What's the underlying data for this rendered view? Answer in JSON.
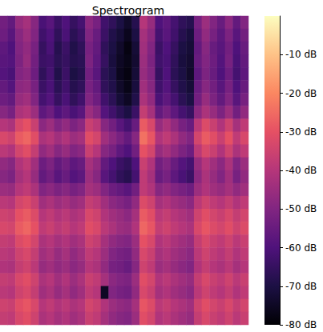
{
  "chart_data": {
    "type": "heatmap",
    "title": "Spectrogram",
    "tick_labels": false,
    "cells": [
      [
        -53,
        -56,
        -46,
        -43,
        -49,
        -61,
        -58,
        -64,
        -60,
        -65,
        -62,
        -48,
        -52,
        -63,
        -66,
        -70,
        -74,
        -68,
        -40,
        -46,
        -60,
        -57,
        -62,
        -66,
        -68,
        -52,
        -45,
        -50,
        -55,
        -48,
        -56,
        -50
      ],
      [
        -54,
        -58,
        -49,
        -45,
        -50,
        -63,
        -60,
        -66,
        -61,
        -67,
        -64,
        -50,
        -55,
        -64,
        -69,
        -72,
        -76,
        -70,
        -43,
        -48,
        -62,
        -58,
        -63,
        -68,
        -71,
        -54,
        -47,
        -52,
        -57,
        -51,
        -58,
        -53
      ],
      [
        -57,
        -60,
        -50,
        -47,
        -52,
        -65,
        -61,
        -68,
        -64,
        -69,
        -66,
        -52,
        -56,
        -66,
        -70,
        -74,
        -78,
        -72,
        -44,
        -50,
        -64,
        -60,
        -65,
        -70,
        -72,
        -56,
        -49,
        -55,
        -58,
        -53,
        -60,
        -55
      ],
      [
        -58,
        -59,
        -51,
        -46,
        -53,
        -64,
        -63,
        -67,
        -65,
        -68,
        -67,
        -51,
        -57,
        -65,
        -71,
        -75,
        -77,
        -73,
        -45,
        -51,
        -63,
        -61,
        -66,
        -71,
        -73,
        -55,
        -50,
        -54,
        -59,
        -52,
        -61,
        -56
      ],
      [
        -59,
        -61,
        -50,
        -48,
        -54,
        -66,
        -62,
        -69,
        -64,
        -70,
        -68,
        -53,
        -58,
        -67,
        -70,
        -76,
        -78,
        -72,
        -46,
        -50,
        -65,
        -60,
        -67,
        -70,
        -74,
        -57,
        -51,
        -55,
        -60,
        -54,
        -62,
        -57
      ],
      [
        -56,
        -59,
        -48,
        -47,
        -52,
        -64,
        -61,
        -67,
        -63,
        -68,
        -66,
        -52,
        -56,
        -66,
        -69,
        -74,
        -77,
        -71,
        -44,
        -49,
        -63,
        -59,
        -65,
        -69,
        -72,
        -55,
        -49,
        -53,
        -58,
        -52,
        -60,
        -55
      ],
      [
        -54,
        -56,
        -46,
        -44,
        -50,
        -62,
        -59,
        -65,
        -61,
        -66,
        -63,
        -50,
        -54,
        -63,
        -67,
        -72,
        -75,
        -69,
        -42,
        -47,
        -61,
        -57,
        -62,
        -67,
        -70,
        -53,
        -46,
        -51,
        -56,
        -50,
        -58,
        -52
      ],
      [
        -49,
        -52,
        -42,
        -40,
        -45,
        -57,
        -54,
        -60,
        -57,
        -61,
        -58,
        -45,
        -49,
        -59,
        -63,
        -67,
        -70,
        -64,
        -37,
        -43,
        -56,
        -52,
        -57,
        -62,
        -65,
        -48,
        -42,
        -46,
        -51,
        -45,
        -53,
        -47
      ],
      [
        -40,
        -42,
        -33,
        -30,
        -36,
        -48,
        -45,
        -50,
        -47,
        -51,
        -48,
        -36,
        -39,
        -49,
        -53,
        -58,
        -62,
        -55,
        -28,
        -33,
        -46,
        -42,
        -47,
        -52,
        -55,
        -39,
        -32,
        -36,
        -41,
        -35,
        -43,
        -38
      ],
      [
        -33,
        -35,
        -28,
        -26,
        -31,
        -42,
        -40,
        -44,
        -41,
        -45,
        -43,
        -31,
        -34,
        -44,
        -48,
        -52,
        -56,
        -49,
        -24,
        -29,
        -41,
        -38,
        -42,
        -47,
        -50,
        -34,
        -28,
        -31,
        -36,
        -30,
        -38,
        -33
      ],
      [
        -39,
        -41,
        -34,
        -31,
        -37,
        -47,
        -44,
        -49,
        -46,
        -50,
        -48,
        -36,
        -40,
        -49,
        -52,
        -57,
        -60,
        -53,
        -30,
        -34,
        -46,
        -43,
        -47,
        -51,
        -54,
        -39,
        -33,
        -36,
        -41,
        -35,
        -42,
        -38
      ],
      [
        -47,
        -49,
        -41,
        -38,
        -44,
        -54,
        -51,
        -56,
        -53,
        -57,
        -55,
        -43,
        -47,
        -56,
        -60,
        -64,
        -66,
        -60,
        -36,
        -41,
        -53,
        -50,
        -55,
        -59,
        -62,
        -46,
        -40,
        -44,
        -48,
        -42,
        -50,
        -45
      ],
      [
        -49,
        -51,
        -43,
        -40,
        -46,
        -56,
        -53,
        -58,
        -55,
        -59,
        -57,
        -45,
        -49,
        -58,
        -62,
        -66,
        -68,
        -62,
        -38,
        -43,
        -55,
        -52,
        -57,
        -61,
        -64,
        -48,
        -42,
        -46,
        -50,
        -44,
        -52,
        -47
      ],
      [
        -45,
        -46,
        -40,
        -38,
        -42,
        -50,
        -48,
        -51,
        -49,
        -52,
        -50,
        -43,
        -45,
        -50,
        -54,
        -56,
        -58,
        -53,
        -38,
        -41,
        -49,
        -47,
        -50,
        -52,
        -54,
        -45,
        -41,
        -44,
        -46,
        -43,
        -47,
        -44
      ],
      [
        -39,
        -40,
        -34,
        -32,
        -36,
        -44,
        -42,
        -45,
        -43,
        -46,
        -44,
        -37,
        -39,
        -44,
        -48,
        -50,
        -52,
        -47,
        -32,
        -35,
        -43,
        -41,
        -44,
        -46,
        -48,
        -39,
        -35,
        -38,
        -40,
        -37,
        -41,
        -38
      ],
      [
        -35,
        -36,
        -30,
        -28,
        -32,
        -40,
        -38,
        -41,
        -39,
        -42,
        -40,
        -33,
        -35,
        -41,
        -44,
        -46,
        -48,
        -43,
        -28,
        -31,
        -39,
        -37,
        -40,
        -42,
        -44,
        -35,
        -31,
        -34,
        -36,
        -33,
        -37,
        -34
      ],
      [
        -33,
        -34,
        -28,
        -26,
        -30,
        -38,
        -36,
        -39,
        -37,
        -40,
        -38,
        -31,
        -33,
        -39,
        -42,
        -45,
        -46,
        -41,
        -26,
        -29,
        -37,
        -35,
        -38,
        -40,
        -42,
        -33,
        -29,
        -32,
        -34,
        -31,
        -35,
        -32
      ],
      [
        -37,
        -38,
        -32,
        -30,
        -34,
        -42,
        -40,
        -43,
        -41,
        -44,
        -42,
        -35,
        -37,
        -43,
        -47,
        -49,
        -50,
        -45,
        -30,
        -33,
        -41,
        -39,
        -42,
        -44,
        -46,
        -37,
        -33,
        -36,
        -38,
        -35,
        -39,
        -36
      ],
      [
        -39,
        -40,
        -35,
        -33,
        -37,
        -44,
        -42,
        -46,
        -43,
        -47,
        -44,
        -38,
        -40,
        -45,
        -50,
        -52,
        -53,
        -47,
        -33,
        -36,
        -43,
        -41,
        -44,
        -46,
        -48,
        -39,
        -35,
        -38,
        -40,
        -37,
        -41,
        -38
      ],
      [
        -41,
        -42,
        -37,
        -35,
        -39,
        -46,
        -44,
        -47,
        -45,
        -48,
        -46,
        -40,
        -42,
        -47,
        -52,
        -53,
        -55,
        -49,
        -35,
        -38,
        -45,
        -43,
        -46,
        -48,
        -50,
        -41,
        -37,
        -40,
        -42,
        -39,
        -43,
        -40
      ],
      [
        -37,
        -38,
        -33,
        -31,
        -35,
        -42,
        -40,
        -44,
        -41,
        -45,
        -42,
        -36,
        -38,
        -43,
        -48,
        -50,
        -51,
        -45,
        -31,
        -34,
        -41,
        -39,
        -42,
        -44,
        -46,
        -37,
        -33,
        -36,
        -38,
        -35,
        -39,
        -36
      ],
      [
        -39,
        -40,
        -35,
        -33,
        -37,
        -44,
        -42,
        -46,
        -43,
        -47,
        -44,
        -38,
        -40,
        -75,
        -50,
        -52,
        -53,
        -47,
        -33,
        -36,
        -43,
        -41,
        -44,
        -46,
        -48,
        -39,
        -35,
        -38,
        -40,
        -37,
        -41,
        -38
      ],
      [
        -35,
        -36,
        -31,
        -29,
        -33,
        -40,
        -38,
        -41,
        -39,
        -42,
        -40,
        -34,
        -36,
        -41,
        -45,
        -47,
        -48,
        -43,
        -29,
        -32,
        -39,
        -37,
        -40,
        -42,
        -44,
        -35,
        -31,
        -34,
        -36,
        -33,
        -37,
        -34
      ],
      [
        -37,
        -38,
        -33,
        -31,
        -35,
        -42,
        -40,
        -43,
        -41,
        -44,
        -42,
        -36,
        -38,
        -43,
        -47,
        -49,
        -50,
        -45,
        -31,
        -34,
        -41,
        -39,
        -42,
        -44,
        -46,
        -37,
        -33,
        -36,
        -38,
        -35,
        -39,
        -36
      ]
    ],
    "colorbar": {
      "range": [
        -80,
        0
      ],
      "ticks": [
        {
          "value": -10,
          "label": "-10 dB"
        },
        {
          "value": -20,
          "label": "-20 dB"
        },
        {
          "value": -30,
          "label": "-30 dB"
        },
        {
          "value": -40,
          "label": "-40 dB"
        },
        {
          "value": -50,
          "label": "-50 dB"
        },
        {
          "value": -60,
          "label": "-60 dB"
        },
        {
          "value": -70,
          "label": "-70 dB"
        },
        {
          "value": -80,
          "label": "-80 dB"
        }
      ]
    }
  }
}
